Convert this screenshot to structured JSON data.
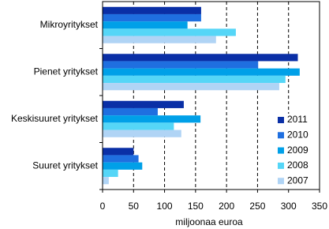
{
  "chart_data": {
    "type": "hbar",
    "categories": [
      "Mikroyritykset",
      "Pienet yritykset",
      "Keskisuuret yritykset",
      "Suuret yritykset"
    ],
    "series": [
      {
        "name": "2011",
        "color": "#0a2fa6",
        "values": [
          159,
          315,
          131,
          50
        ]
      },
      {
        "name": "2010",
        "color": "#1f6fe0",
        "values": [
          159,
          251,
          89,
          58
        ]
      },
      {
        "name": "2009",
        "color": "#00a0e8",
        "values": [
          137,
          318,
          158,
          64
        ]
      },
      {
        "name": "2008",
        "color": "#55d6f7",
        "values": [
          215,
          295,
          115,
          25
        ]
      },
      {
        "name": "2007",
        "color": "#b0d4f5",
        "values": [
          183,
          285,
          127,
          10
        ]
      }
    ],
    "xlim": [
      0,
      350
    ],
    "xticks": [
      0,
      50,
      100,
      150,
      200,
      250,
      300,
      350
    ],
    "xlabel": "miljoonaa euroa",
    "grid": true,
    "legend": "right"
  }
}
